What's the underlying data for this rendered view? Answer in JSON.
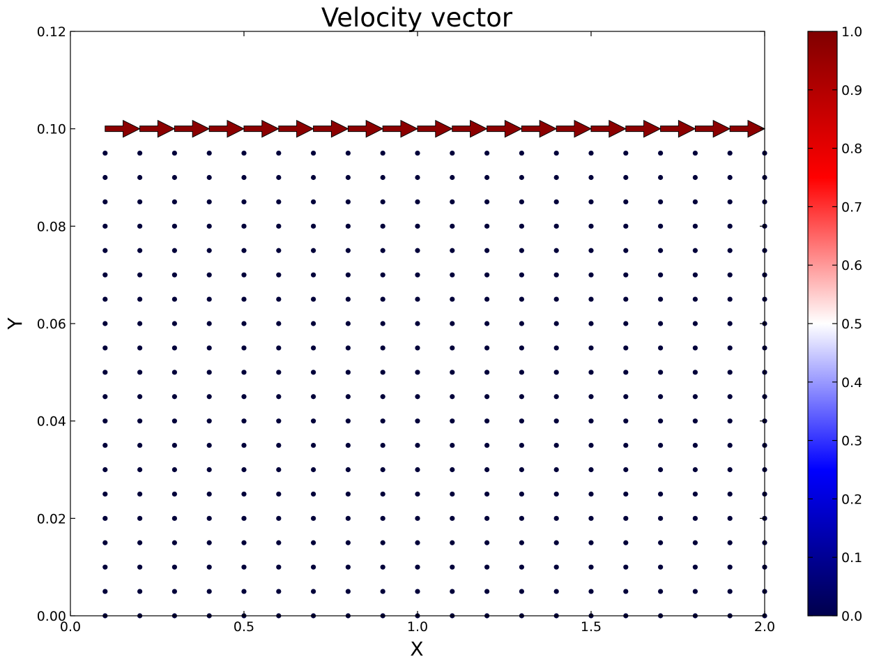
{
  "chart_data": {
    "type": "quiver",
    "title": "Velocity vector",
    "xlabel": "X",
    "ylabel": "Y",
    "xlim": [
      0.0,
      2.0
    ],
    "ylim": [
      0.0,
      0.12
    ],
    "x_ticks": [
      "0.0",
      "0.5",
      "1.0",
      "1.5",
      "2.0"
    ],
    "y_ticks": [
      "0.00",
      "0.02",
      "0.04",
      "0.06",
      "0.08",
      "0.10",
      "0.12"
    ],
    "grid": false,
    "grid_x": [
      0.1,
      0.2,
      0.3,
      0.4,
      0.5,
      0.6,
      0.7,
      0.8,
      0.9,
      1.0,
      1.1,
      1.2,
      1.3,
      1.4,
      1.5,
      1.6,
      1.7,
      1.8,
      1.9,
      2.0
    ],
    "grid_y": [
      0.0,
      0.005,
      0.01,
      0.015,
      0.02,
      0.025,
      0.03,
      0.035,
      0.04,
      0.045,
      0.05,
      0.055,
      0.06,
      0.065,
      0.07,
      0.075,
      0.08,
      0.085,
      0.09,
      0.095,
      0.1
    ],
    "lid_y": 0.1,
    "lid_velocity": 1.0,
    "interior_velocity": 0.0,
    "colorbar": {
      "colormap": "seismic",
      "range": [
        0.0,
        1.0
      ],
      "ticks": [
        "0.0",
        "0.1",
        "0.2",
        "0.3",
        "0.4",
        "0.5",
        "0.6",
        "0.7",
        "0.8",
        "0.9",
        "1.0"
      ]
    },
    "colors": {
      "arrow": "#8b0000",
      "dot": "#00003a",
      "cmap_stops": [
        "#00004c",
        "#0000ff",
        "#ffffff",
        "#ff0000",
        "#800000"
      ]
    }
  }
}
